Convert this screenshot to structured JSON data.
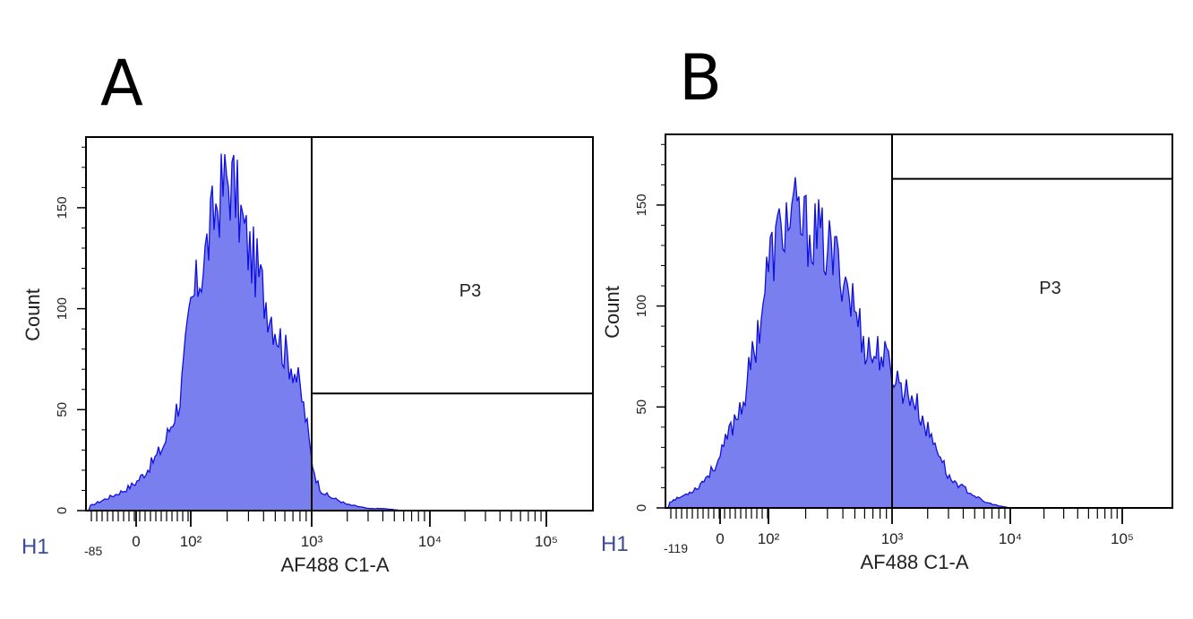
{
  "figure": {
    "panel_labels": [
      "A",
      "B"
    ]
  },
  "chart_data": [
    {
      "panel": "A",
      "type": "area",
      "xlabel": "AF488 C1-A",
      "ylabel": "Count",
      "plot_id": "H1",
      "x_scale": "biexponential",
      "x_axis_min_label": "-85",
      "x_tick_labels": [
        "0",
        "10²",
        "10³",
        "10⁴",
        "10⁵"
      ],
      "y_tick_labels": [
        "0",
        "50",
        "100",
        "150"
      ],
      "ylim": [
        0,
        185
      ],
      "gate": {
        "name": "P3",
        "x_from": 1000,
        "level": 58
      },
      "series": [
        {
          "x": [
            -80,
            -50,
            -20,
            0,
            20,
            50,
            80,
            100,
            130,
            160,
            200,
            230,
            260,
            300,
            350,
            400,
            450,
            500,
            600,
            700,
            800,
            900,
            1000,
            1100,
            1200,
            1400,
            1700,
            2000,
            2500,
            3000,
            4000,
            6000,
            8000,
            10000
          ],
          "values": [
            2,
            6,
            10,
            14,
            20,
            32,
            55,
            100,
            125,
            150,
            165,
            160,
            145,
            130,
            120,
            108,
            100,
            92,
            78,
            72,
            60,
            45,
            25,
            15,
            10,
            7,
            5,
            3,
            2,
            1,
            1,
            0,
            0,
            0
          ]
        }
      ]
    },
    {
      "panel": "B",
      "type": "area",
      "xlabel": "AF488 C1-A",
      "ylabel": "Count",
      "plot_id": "H1",
      "x_scale": "biexponential",
      "x_axis_min_label": "-119",
      "x_tick_labels": [
        "0",
        "10²",
        "10³",
        "10⁴",
        "10⁵"
      ],
      "y_tick_labels": [
        "0",
        "50",
        "100",
        "150"
      ],
      "ylim": [
        0,
        185
      ],
      "gate": {
        "name": "P3",
        "x_from": 1000,
        "level": 163
      },
      "series": [
        {
          "x": [
            -110,
            -80,
            -50,
            -20,
            0,
            20,
            50,
            80,
            100,
            130,
            160,
            200,
            250,
            300,
            350,
            400,
            500,
            600,
            700,
            800,
            900,
            1000,
            1200,
            1500,
            2000,
            2500,
            3000,
            4000,
            5000,
            6000,
            8000,
            10000
          ],
          "values": [
            3,
            6,
            10,
            18,
            25,
            38,
            55,
            90,
            120,
            140,
            145,
            138,
            135,
            128,
            122,
            118,
            98,
            82,
            75,
            78,
            72,
            68,
            60,
            55,
            38,
            28,
            15,
            10,
            6,
            3,
            1,
            0
          ]
        }
      ]
    }
  ]
}
